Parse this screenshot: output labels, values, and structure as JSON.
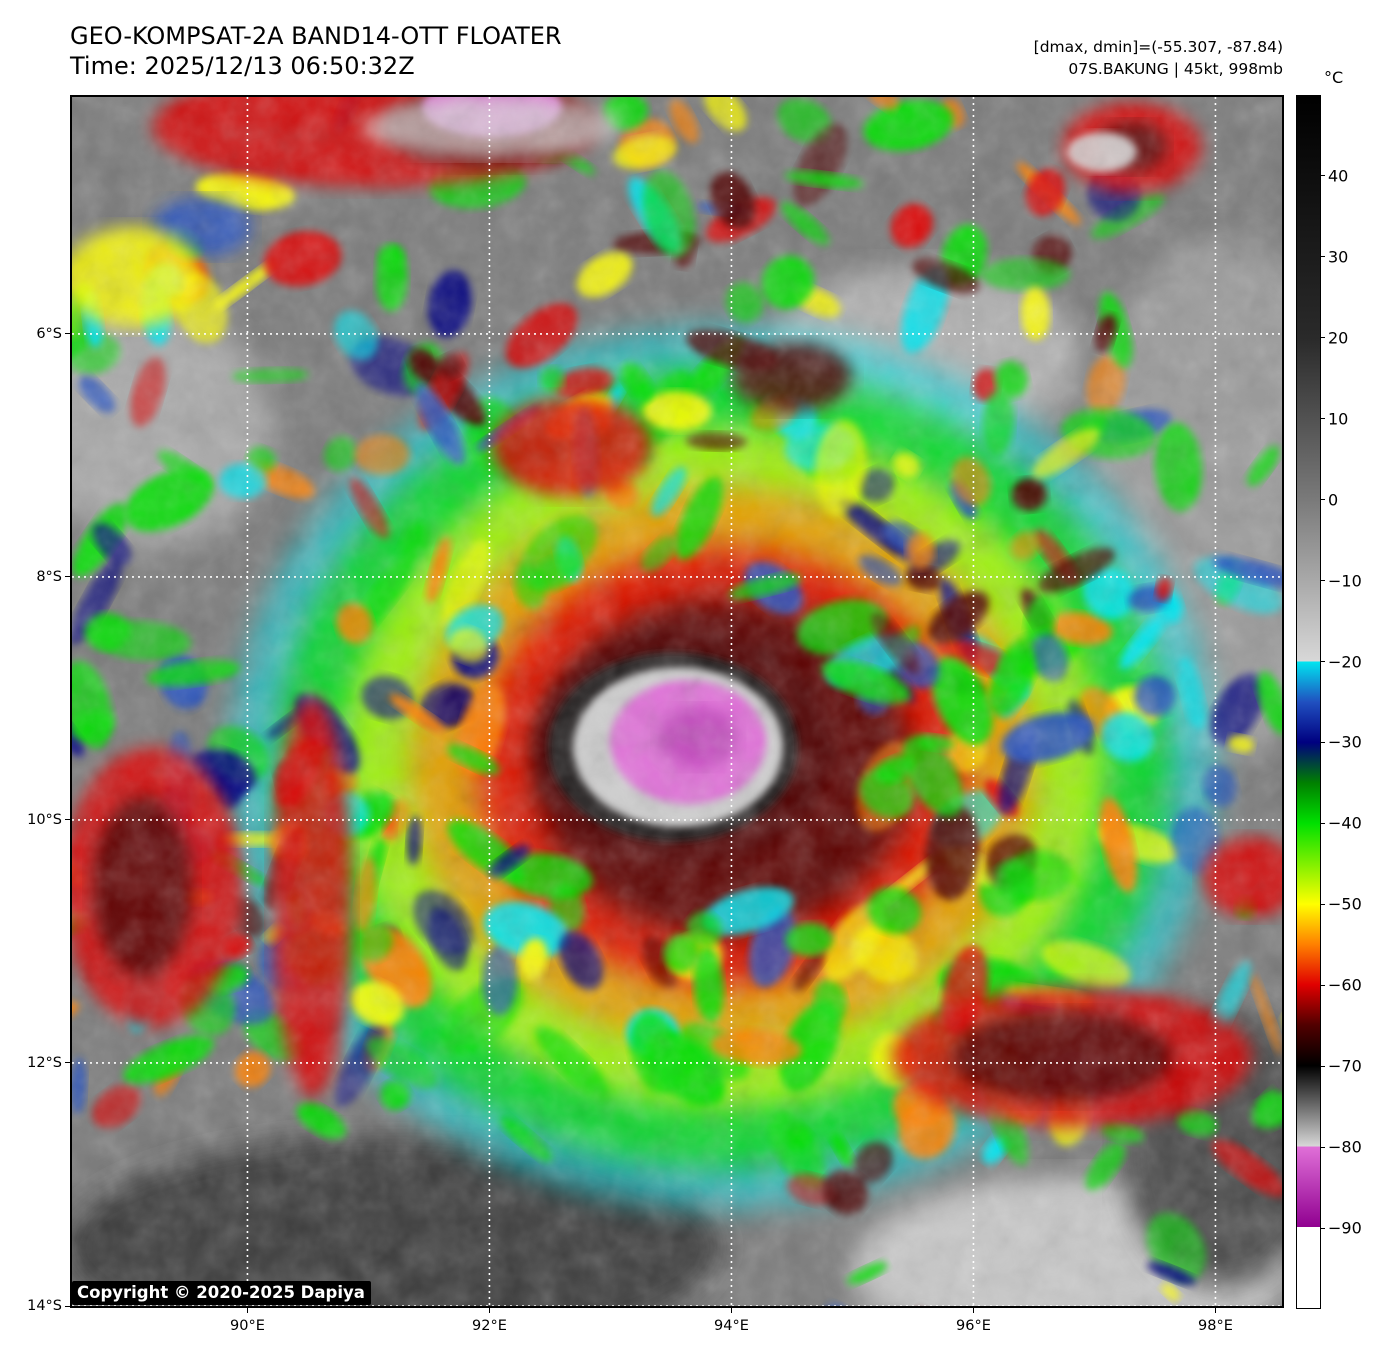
{
  "title": {
    "line1": "GEO-KOMPSAT-2A BAND14-OTT FLOATER",
    "line2": "Time: 2025/12/13 06:50:32Z"
  },
  "info": {
    "line1": "[dmax, dmin]=(-55.307, -87.84)",
    "line2": "07S.BAKUNG | 45kt, 998mb"
  },
  "colorbar": {
    "unit": "°C",
    "tick_labels": [
      "40",
      "30",
      "20",
      "10",
      "0",
      "−10",
      "−20",
      "−30",
      "−40",
      "−50",
      "−60",
      "−70",
      "−80",
      "−90"
    ],
    "tick_values": [
      40,
      30,
      20,
      10,
      0,
      -10,
      -20,
      -30,
      -40,
      -50,
      -60,
      -70,
      -80,
      -90
    ],
    "range": [
      -100,
      50
    ],
    "colors": {
      "warm_top": "#000000",
      "gray_mid": "#8c8c8c",
      "gray_light": "#d8d8d8",
      "cyan": "#00e5f0",
      "blue": "#2050c0",
      "navy": "#000080",
      "green": "#00e000",
      "yellow": "#ffff00",
      "orange": "#ff8000",
      "red": "#e00000",
      "darkred": "#500000",
      "pink": "#e070d8",
      "magenta": "#900090",
      "white": "#ffffff"
    }
  },
  "axes": {
    "lat_labels": [
      "6°S",
      "8°S",
      "10°S",
      "12°S",
      "14°S"
    ],
    "lat_values": [
      -6,
      -8,
      -10,
      -12,
      -14
    ],
    "lon_labels": [
      "90°E",
      "92°E",
      "94°E",
      "96°E",
      "98°E"
    ],
    "lon_values": [
      90,
      92,
      94,
      96,
      98
    ],
    "lat_range": [
      -14,
      -4.05
    ],
    "lon_range": [
      88.55,
      98.55
    ],
    "grid": "dotted white"
  },
  "storm": {
    "id": "07S",
    "name": "BAKUNG",
    "center_lat": -9.4,
    "center_lon": 93.6
  },
  "copyright": "Copyright © 2020-2025 Dapiya"
}
